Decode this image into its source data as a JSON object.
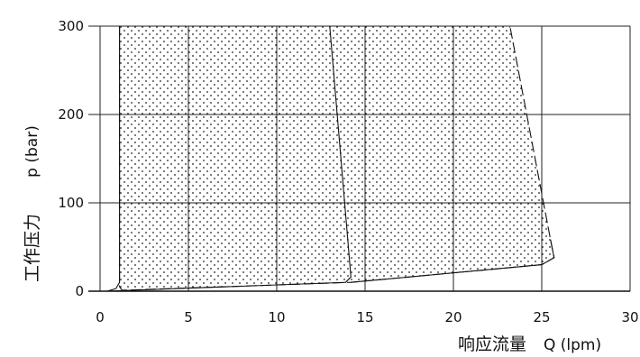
{
  "chart_data": {
    "type": "line",
    "title": "",
    "xlabel": "响应流量",
    "xunit": "Q (lpm)",
    "ylabel": "工作压力",
    "yunit": "p (bar)",
    "xlim": [
      0,
      30
    ],
    "ylim": [
      0,
      300
    ],
    "xticks": [
      0,
      5,
      10,
      15,
      20,
      25,
      30
    ],
    "yticks": [
      0,
      100,
      200,
      300
    ],
    "grid": true,
    "shaded_region": "dotted fill between the two dashed boundary curves",
    "series": [
      {
        "style": "dashed",
        "role": "boundary",
        "points": [
          [
            1.1,
            300
          ],
          [
            1.1,
            5
          ],
          [
            1.25,
            1
          ],
          [
            14.2,
            10
          ],
          [
            25.0,
            30
          ],
          [
            25.7,
            38
          ],
          [
            25.5,
            58
          ],
          [
            23.2,
            300
          ]
        ]
      },
      {
        "style": "solid",
        "points": [
          [
            0.4,
            0
          ],
          [
            0.9,
            3
          ],
          [
            1.1,
            10
          ],
          [
            1.1,
            300
          ]
        ]
      },
      {
        "style": "solid",
        "points": [
          [
            0.4,
            0
          ],
          [
            13.9,
            10
          ],
          [
            14.2,
            16
          ],
          [
            13.0,
            300
          ]
        ]
      },
      {
        "style": "solid",
        "points": [
          [
            14.2,
            10
          ],
          [
            25.0,
            30
          ],
          [
            25.7,
            38
          ],
          [
            25.5,
            58
          ]
        ]
      }
    ]
  }
}
